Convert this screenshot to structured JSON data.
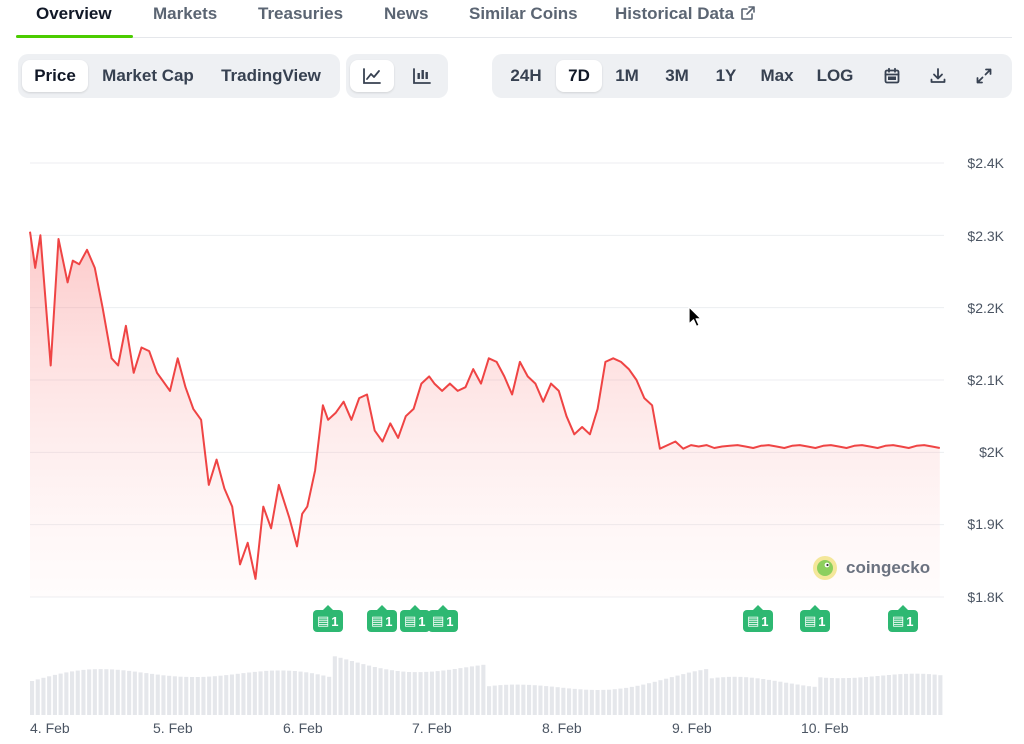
{
  "tabs": [
    {
      "label": "Overview",
      "active": true
    },
    {
      "label": "Markets"
    },
    {
      "label": "Treasuries"
    },
    {
      "label": "News"
    },
    {
      "label": "Similar Coins"
    },
    {
      "label": "Historical Data",
      "icon": "external-link-icon"
    }
  ],
  "chart_mode": {
    "options": [
      "Price",
      "Market Cap",
      "TradingView"
    ],
    "selected": "Price"
  },
  "chart_style": {
    "options": [
      "line-chart-icon",
      "candlestick-chart-icon"
    ],
    "selected": "line-chart-icon"
  },
  "ranges": {
    "options": [
      "24H",
      "7D",
      "1M",
      "3M",
      "1Y",
      "Max",
      "LOG"
    ],
    "selected": "7D"
  },
  "tools": [
    "calendar-icon",
    "download-icon",
    "expand-icon"
  ],
  "watermark": "coingecko",
  "colors": {
    "accent": "#4bcc00",
    "line": "#ef4444",
    "news": "#2eb872"
  },
  "news_markers": [
    "1",
    "1",
    "1",
    "1",
    "1",
    "1",
    "1"
  ],
  "chart_data": {
    "type": "area",
    "title": "",
    "xlabel": "",
    "ylabel": "",
    "ylim": [
      1800,
      2400
    ],
    "yticks": [
      "$2.4K",
      "$2.3K",
      "$2.2K",
      "$2.1K",
      "$2K",
      "$1.9K",
      "$1.8K"
    ],
    "xticks": [
      "4. Feb",
      "5. Feb",
      "6. Feb",
      "7. Feb",
      "8. Feb",
      "9. Feb",
      "10. Feb"
    ],
    "grid": true,
    "x_days": [
      0.0,
      0.04,
      0.08,
      0.16,
      0.22,
      0.29,
      0.33,
      0.38,
      0.44,
      0.5,
      0.56,
      0.63,
      0.68,
      0.74,
      0.8,
      0.86,
      0.92,
      0.98,
      1.02,
      1.08,
      1.14,
      1.2,
      1.26,
      1.32,
      1.38,
      1.44,
      1.5,
      1.56,
      1.62,
      1.68,
      1.74,
      1.8,
      1.86,
      1.92,
      2.0,
      2.06,
      2.1,
      2.14,
      2.2,
      2.26,
      2.3,
      2.36,
      2.42,
      2.48,
      2.54,
      2.6,
      2.66,
      2.72,
      2.78,
      2.84,
      2.9,
      2.96,
      3.02,
      3.08,
      3.12,
      3.18,
      3.24,
      3.3,
      3.36,
      3.42,
      3.48,
      3.54,
      3.6,
      3.66,
      3.72,
      3.78,
      3.84,
      3.9,
      3.96,
      4.02,
      4.08,
      4.14,
      4.2,
      4.26,
      4.32,
      4.38,
      4.44,
      4.5,
      4.56,
      4.62,
      4.68,
      4.74,
      4.8,
      4.86,
      4.92,
      4.98,
      5.04,
      5.1,
      5.16,
      5.22,
      5.28,
      5.34,
      5.4,
      5.46,
      5.52,
      5.58,
      5.64,
      5.7,
      5.76,
      5.82,
      5.88,
      5.94,
      6.0,
      6.06,
      6.12,
      6.18,
      6.24,
      6.3,
      6.36,
      6.42,
      6.48,
      6.54,
      6.6,
      6.66,
      6.72,
      6.78,
      6.84,
      6.9,
      6.96,
      7.02,
      7.08
    ],
    "values": [
      2305,
      2255,
      2300,
      2120,
      2295,
      2235,
      2265,
      2260,
      2280,
      2255,
      2200,
      2130,
      2120,
      2175,
      2110,
      2145,
      2140,
      2110,
      2100,
      2085,
      2130,
      2090,
      2060,
      2045,
      1955,
      1990,
      1950,
      1925,
      1845,
      1875,
      1825,
      1925,
      1895,
      1955,
      1910,
      1870,
      1915,
      1925,
      1975,
      2065,
      2045,
      2055,
      2070,
      2045,
      2075,
      2080,
      2030,
      2015,
      2040,
      2020,
      2050,
      2060,
      2095,
      2105,
      2095,
      2085,
      2095,
      2085,
      2090,
      2115,
      2095,
      2130,
      2125,
      2105,
      2080,
      2125,
      2105,
      2095,
      2070,
      2095,
      2085,
      2050,
      2025,
      2035,
      2025,
      2060,
      2125,
      2130,
      2125,
      2115,
      2100,
      2075,
      2065,
      2005,
      2010,
      2015,
      2005,
      2010,
      2008,
      2010,
      2006,
      2008,
      2009,
      2010,
      2008,
      2006,
      2009,
      2010,
      2008,
      2006,
      2009,
      2010,
      2008,
      2006,
      2009,
      2010,
      2008,
      2006,
      2009,
      2010,
      2008,
      2006,
      2009,
      2010,
      2008,
      2006,
      2009,
      2010,
      2008,
      2006,
      2009
    ]
  }
}
